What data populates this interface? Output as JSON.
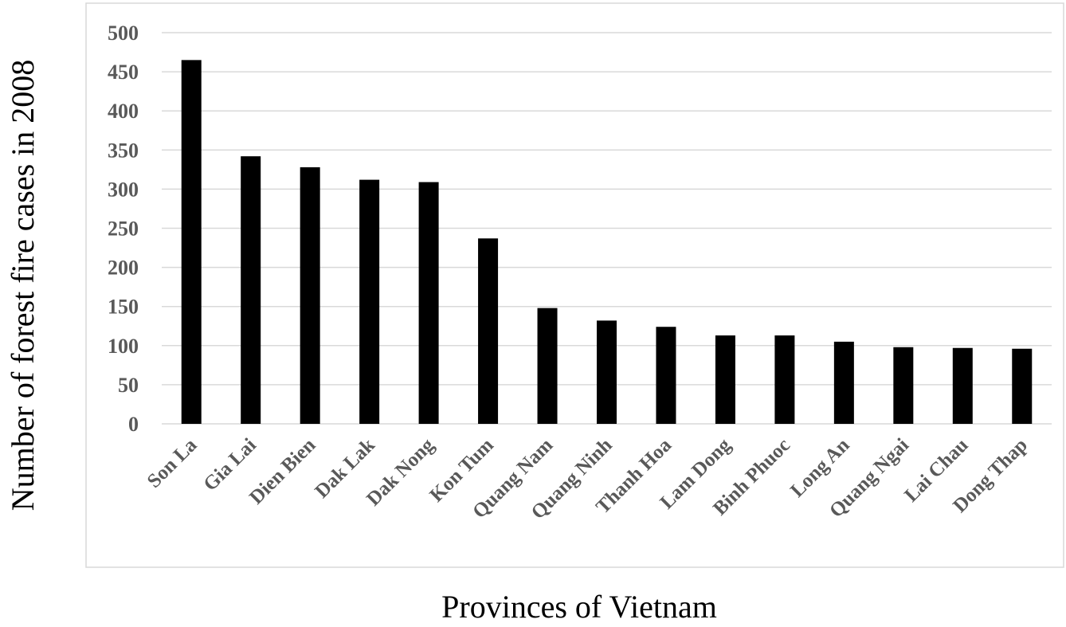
{
  "chart_data": {
    "type": "bar",
    "title": "",
    "xlabel": "Provinces of Vietnam",
    "ylabel": "Number of forest fire cases in 2008",
    "categories": [
      "Son La",
      "Gia Lai",
      "Dien Bien",
      "Dak Lak",
      "Dak Nong",
      "Kon Tum",
      "Quang Nam",
      "Quang Ninh",
      "Thanh Hoa",
      "Lam Dong",
      "Binh Phuoc",
      "Long An",
      "Quang Ngai",
      "Lai Chau",
      "Dong Thap"
    ],
    "values": [
      465,
      342,
      328,
      312,
      309,
      237,
      148,
      132,
      124,
      113,
      113,
      105,
      98,
      97,
      96
    ],
    "ylim": [
      0,
      500
    ],
    "yticks": [
      0,
      50,
      100,
      150,
      200,
      250,
      300,
      350,
      400,
      450,
      500
    ],
    "grid": true,
    "legend": "none",
    "colors": {
      "bar": "#000000",
      "grid": "#d9d9d9",
      "tick_text": "#595959",
      "frame": "#d9d9d9"
    }
  }
}
